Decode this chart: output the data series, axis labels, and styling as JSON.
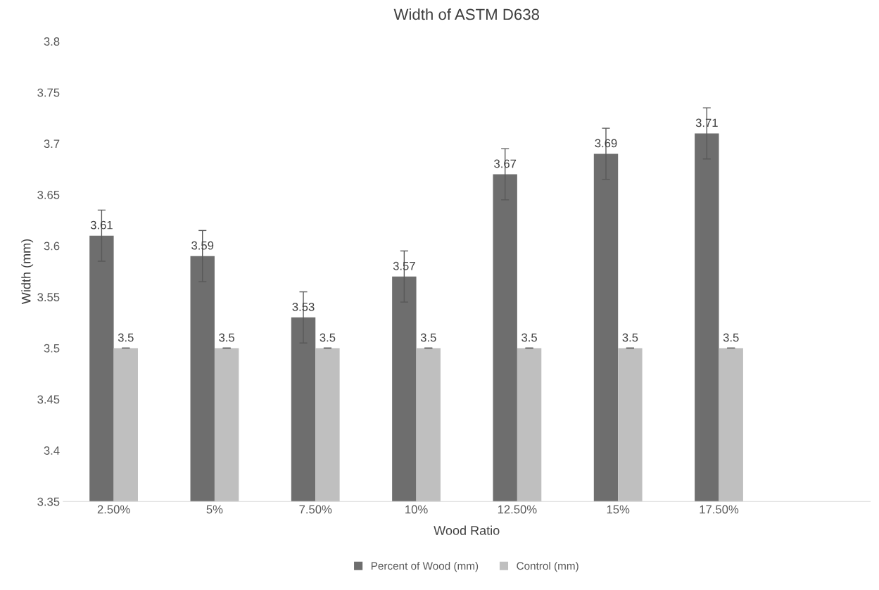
{
  "chart_data": {
    "type": "bar",
    "title": "Width of ASTM D638",
    "xlabel": "Wood Ratio",
    "ylabel": "Width (mm)",
    "categories": [
      "2.50%",
      "5%",
      "7.50%",
      "10%",
      "12.50%",
      "15%",
      "17.50%",
      null
    ],
    "series": [
      {
        "name": "Percent of Wood (mm)",
        "color": "#6e6e6e",
        "values": [
          3.61,
          3.59,
          3.53,
          3.57,
          3.67,
          3.69,
          3.71,
          null
        ],
        "errors": [
          0.025,
          0.025,
          0.025,
          0.025,
          0.025,
          0.025,
          0.025,
          null
        ]
      },
      {
        "name": "Control (mm)",
        "color": "#bfbfbf",
        "values": [
          3.5,
          3.5,
          3.5,
          3.5,
          3.5,
          3.5,
          3.5,
          null
        ],
        "errors": [
          0,
          0,
          0,
          0,
          0,
          0,
          0,
          null
        ]
      }
    ],
    "ylim": [
      3.35,
      3.8
    ],
    "yticks": [
      3.35,
      3.4,
      3.45,
      3.5,
      3.55,
      3.6,
      3.65,
      3.7,
      3.75,
      3.8
    ],
    "data_labels": true,
    "grid": false,
    "legend": "bottom"
  }
}
